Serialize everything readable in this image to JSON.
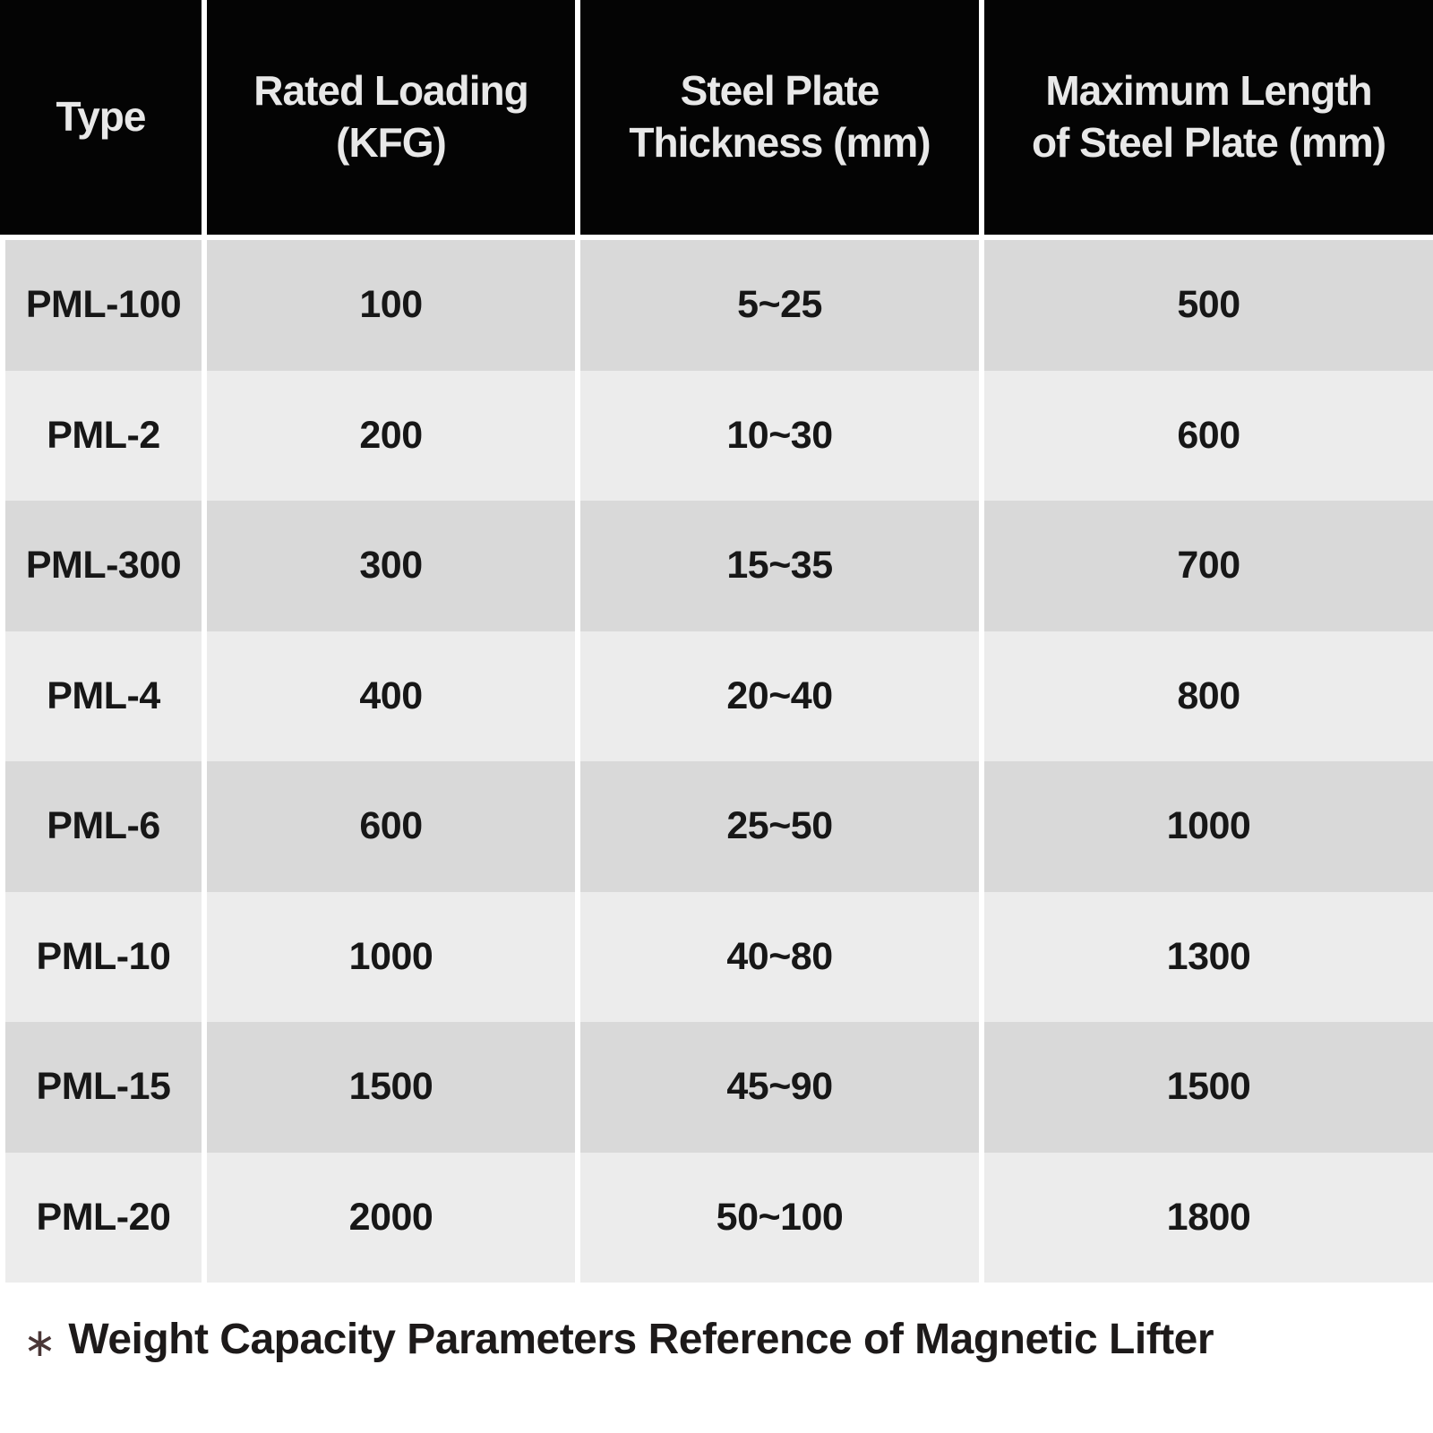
{
  "table": {
    "columns": [
      {
        "lines": [
          "Type"
        ]
      },
      {
        "lines": [
          "Rated Loading",
          "(KFG)"
        ]
      },
      {
        "lines": [
          "Steel Plate",
          "Thickness (mm)"
        ]
      },
      {
        "lines": [
          "Maximum Length",
          "of Steel Plate (mm)"
        ]
      }
    ],
    "rows": [
      {
        "type": "PML-100",
        "rated_loading_kfg": "100",
        "thickness_mm": "5~25",
        "max_length_mm": "500"
      },
      {
        "type": "PML-2",
        "rated_loading_kfg": "200",
        "thickness_mm": "10~30",
        "max_length_mm": "600"
      },
      {
        "type": "PML-300",
        "rated_loading_kfg": "300",
        "thickness_mm": "15~35",
        "max_length_mm": "700"
      },
      {
        "type": "PML-4",
        "rated_loading_kfg": "400",
        "thickness_mm": "20~40",
        "max_length_mm": "800"
      },
      {
        "type": "PML-6",
        "rated_loading_kfg": "600",
        "thickness_mm": "25~50",
        "max_length_mm": "1000"
      },
      {
        "type": "PML-10",
        "rated_loading_kfg": "1000",
        "thickness_mm": "40~80",
        "max_length_mm": "1300"
      },
      {
        "type": "PML-15",
        "rated_loading_kfg": "1500",
        "thickness_mm": "45~90",
        "max_length_mm": "1500"
      },
      {
        "type": "PML-20",
        "rated_loading_kfg": "2000",
        "thickness_mm": "50~100",
        "max_length_mm": "1800"
      }
    ]
  },
  "footnote": {
    "marker": "∗",
    "text": "Weight Capacity Parameters Reference of Magnetic Lifter"
  },
  "colors": {
    "header_bg": "#040404",
    "header_text": "#e8e8e8",
    "row_odd": "#d9d9d9",
    "row_even": "#ececec",
    "body_text": "#171717",
    "separator": "#ffffff",
    "asterisk": "#4a3636"
  }
}
